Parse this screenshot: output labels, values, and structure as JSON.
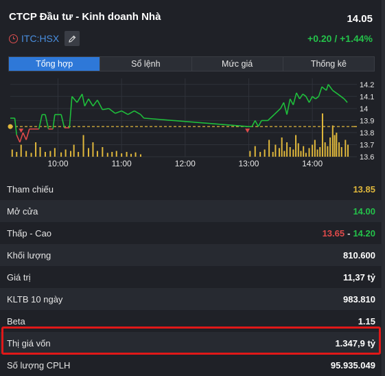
{
  "header": {
    "company_name": "CTCP Đầu tư - Kinh doanh Nhà",
    "price": "14.05",
    "ticker": "ITC:HSX",
    "change": "+0.20 / +1.44%"
  },
  "tabs": [
    {
      "label": "Tổng hợp",
      "active": true
    },
    {
      "label": "Sổ lệnh",
      "active": false
    },
    {
      "label": "Mức giá",
      "active": false
    },
    {
      "label": "Thống kê",
      "active": false
    }
  ],
  "chart_data": {
    "type": "line",
    "x_ticks": [
      "10:00",
      "11:00",
      "12:00",
      "13:00",
      "14:00"
    ],
    "y_ticks": [
      "14.2",
      "14.1",
      "14",
      "13.9",
      "13.8",
      "13.7",
      "13.6"
    ],
    "ylim": [
      13.6,
      14.25
    ],
    "reference_price": 13.85,
    "colors": {
      "up": "#1fbf3c",
      "down": "#e04a4a",
      "reference": "#e0b83c",
      "volume": "#e0b83c",
      "grid": "#2f323a"
    },
    "price_series": [
      [
        9.25,
        13.92
      ],
      [
        9.32,
        13.92
      ],
      [
        9.35,
        13.78
      ],
      [
        9.4,
        13.72
      ],
      [
        9.45,
        13.8
      ],
      [
        9.5,
        13.74
      ],
      [
        9.55,
        13.83
      ],
      [
        9.6,
        13.83
      ],
      [
        9.7,
        13.83
      ],
      [
        9.75,
        13.95
      ],
      [
        9.8,
        13.95
      ],
      [
        9.85,
        13.83
      ],
      [
        9.92,
        13.83
      ],
      [
        9.95,
        13.95
      ],
      [
        10.05,
        13.95
      ],
      [
        10.1,
        13.84
      ],
      [
        10.18,
        13.84
      ],
      [
        10.22,
        14.1
      ],
      [
        10.3,
        14.05
      ],
      [
        10.38,
        14.12
      ],
      [
        10.42,
        14.02
      ],
      [
        10.48,
        14.08
      ],
      [
        10.55,
        14.02
      ],
      [
        10.62,
        14.07
      ],
      [
        10.7,
        13.99
      ],
      [
        10.8,
        14.0
      ],
      [
        10.9,
        13.96
      ],
      [
        11.0,
        13.98
      ],
      [
        11.1,
        13.95
      ],
      [
        11.2,
        13.98
      ],
      [
        11.3,
        13.95
      ],
      [
        11.35,
        13.92
      ],
      [
        13.0,
        13.85
      ],
      [
        13.05,
        13.85
      ],
      [
        13.1,
        13.9
      ],
      [
        13.15,
        13.85
      ],
      [
        13.2,
        13.9
      ],
      [
        13.3,
        13.9
      ],
      [
        13.4,
        13.95
      ],
      [
        13.5,
        14.0
      ],
      [
        13.55,
        14.05
      ],
      [
        13.6,
        13.95
      ],
      [
        13.65,
        14.08
      ],
      [
        13.7,
        14.03
      ],
      [
        13.75,
        14.13
      ],
      [
        13.8,
        14.08
      ],
      [
        13.85,
        14.12
      ],
      [
        13.9,
        14.1
      ],
      [
        13.95,
        14.05
      ],
      [
        14.0,
        14.1
      ],
      [
        14.05,
        14.08
      ],
      [
        14.1,
        14.1
      ],
      [
        14.15,
        14.18
      ],
      [
        14.22,
        14.15
      ],
      [
        14.25,
        14.2
      ],
      [
        14.32,
        14.15
      ],
      [
        14.4,
        14.12
      ],
      [
        14.5,
        14.08
      ],
      [
        14.55,
        14.05
      ]
    ],
    "volume_series": [
      [
        9.28,
        0.15
      ],
      [
        9.35,
        0.1
      ],
      [
        9.42,
        0.25
      ],
      [
        9.5,
        0.12
      ],
      [
        9.58,
        0.08
      ],
      [
        9.65,
        0.3
      ],
      [
        9.72,
        0.2
      ],
      [
        9.8,
        0.1
      ],
      [
        9.88,
        0.12
      ],
      [
        9.95,
        0.18
      ],
      [
        10.05,
        0.09
      ],
      [
        10.12,
        0.15
      ],
      [
        10.2,
        0.12
      ],
      [
        10.25,
        0.25
      ],
      [
        10.32,
        0.1
      ],
      [
        10.4,
        0.45
      ],
      [
        10.48,
        0.18
      ],
      [
        10.55,
        0.3
      ],
      [
        10.62,
        0.12
      ],
      [
        10.7,
        0.2
      ],
      [
        10.78,
        0.08
      ],
      [
        10.85,
        0.1
      ],
      [
        10.92,
        0.12
      ],
      [
        11.0,
        0.07
      ],
      [
        11.08,
        0.1
      ],
      [
        11.15,
        0.06
      ],
      [
        11.22,
        0.09
      ],
      [
        11.3,
        0.05
      ],
      [
        13.02,
        0.12
      ],
      [
        13.1,
        0.22
      ],
      [
        13.18,
        0.1
      ],
      [
        13.25,
        0.15
      ],
      [
        13.32,
        0.35
      ],
      [
        13.38,
        0.1
      ],
      [
        13.42,
        0.25
      ],
      [
        13.48,
        0.18
      ],
      [
        13.52,
        0.4
      ],
      [
        13.56,
        0.12
      ],
      [
        13.6,
        0.3
      ],
      [
        13.65,
        0.2
      ],
      [
        13.7,
        0.15
      ],
      [
        13.74,
        0.45
      ],
      [
        13.78,
        0.28
      ],
      [
        13.82,
        0.12
      ],
      [
        13.86,
        0.22
      ],
      [
        13.9,
        0.08
      ],
      [
        13.95,
        0.18
      ],
      [
        14.0,
        0.25
      ],
      [
        14.04,
        0.35
      ],
      [
        14.08,
        0.15
      ],
      [
        14.12,
        0.2
      ],
      [
        14.16,
        0.9
      ],
      [
        14.2,
        0.3
      ],
      [
        14.24,
        0.22
      ],
      [
        14.28,
        0.4
      ],
      [
        14.32,
        0.65
      ],
      [
        14.35,
        0.45
      ],
      [
        14.38,
        0.5
      ],
      [
        14.42,
        0.3
      ],
      [
        14.46,
        0.2
      ],
      [
        14.52,
        0.35
      ],
      [
        14.56,
        0.25
      ]
    ],
    "down_markers": [
      9.42,
      12.98
    ]
  },
  "stats": [
    {
      "label": "Tham chiếu",
      "value": "13.85",
      "color": "yellow"
    },
    {
      "label": "Mở cửa",
      "value": "14.00",
      "color": "green"
    },
    {
      "label": "Thấp - Cao",
      "low": "13.65",
      "high": "14.20"
    },
    {
      "label": "Khối lượng",
      "value": "810.600",
      "color": ""
    },
    {
      "label": "Giá trị",
      "value": "11,37 tỷ",
      "color": ""
    },
    {
      "label": "KLTB 10 ngày",
      "value": "983.810",
      "color": ""
    },
    {
      "label": "Beta",
      "value": "1.15",
      "color": ""
    },
    {
      "label": "Thị giá vốn",
      "value": "1.347,9 tỷ",
      "color": ""
    },
    {
      "label": "Số lượng CPLH",
      "value": "95.935.049",
      "color": ""
    }
  ]
}
